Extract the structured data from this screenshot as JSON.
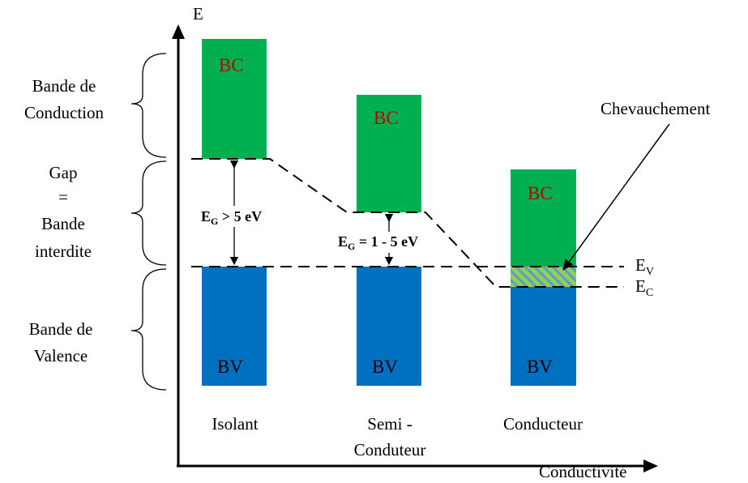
{
  "axis": {
    "y_label": "E",
    "x_label": "Conductivité"
  },
  "left_labels": {
    "conduction_line1": "Bande de",
    "conduction_line2": "Conduction",
    "gap_line1": "Gap",
    "gap_line2": "=",
    "gap_line3": "Bande",
    "gap_line4": "interdite",
    "valence_line1": "Bande de",
    "valence_line2": "Valence"
  },
  "bands": {
    "bc": "BC",
    "bv": "BV"
  },
  "columns": {
    "isolant": "Isolant",
    "semi_line1": "Semi -",
    "semi_line2": "Conduteur",
    "conducteur": "Conducteur"
  },
  "gaps": {
    "isolant_prefix": "E",
    "isolant_sub": "G",
    "isolant_value": " > 5 eV",
    "semi_prefix": "E",
    "semi_sub": "G",
    "semi_value": " = 1 - 5 eV"
  },
  "levels": {
    "ev_main": "E",
    "ev_sub": "V",
    "ec_main": "E",
    "ec_sub": "C"
  },
  "annotation": {
    "overlap": "Chevauchement"
  },
  "colors": {
    "bc": "#00b050",
    "bv": "#0070c0",
    "bc_text": "#c00000",
    "overlap_stripe": "#5b9bd5"
  }
}
